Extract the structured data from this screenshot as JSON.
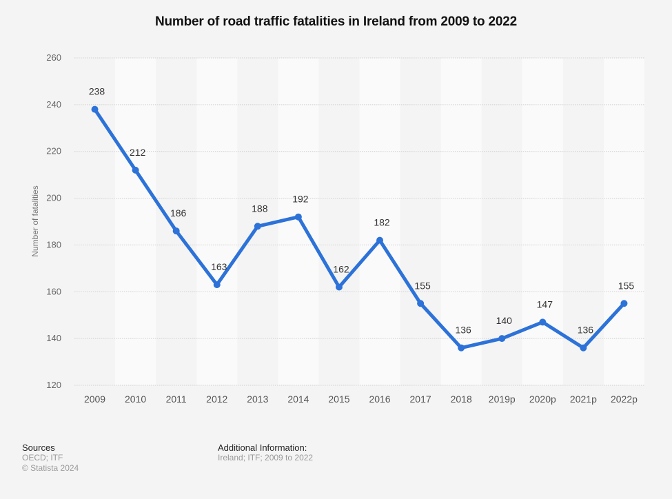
{
  "chart_data": {
    "type": "line",
    "title": "Number of road traffic fatalities in Ireland from 2009 to 2022",
    "xlabel": "",
    "ylabel": "Number of fatalities",
    "categories": [
      "2009",
      "2010",
      "2011",
      "2012",
      "2013",
      "2014",
      "2015",
      "2016",
      "2017",
      "2018",
      "2019p",
      "2020p",
      "2021p",
      "2022p"
    ],
    "series": [
      {
        "name": "Number of fatalities",
        "values": [
          238,
          212,
          186,
          163,
          188,
          192,
          162,
          182,
          155,
          136,
          140,
          147,
          136,
          155
        ],
        "color": "#2c72d8"
      }
    ],
    "ylim": [
      120,
      260
    ],
    "yticks": [
      120,
      140,
      160,
      180,
      200,
      220,
      240,
      260
    ],
    "grid": true,
    "legend": "none",
    "data_labels": true
  },
  "colors": {
    "line": "#2c72d8",
    "background": "#f4f4f4",
    "stripe": "#fafafa",
    "grid": "#cfcfcf"
  },
  "footer": {
    "sources_heading": "Sources",
    "sources_text": "OECD; ITF",
    "copyright": "© Statista 2024",
    "additional_heading": "Additional Information:",
    "additional_text": "Ireland; ITF; 2009 to 2022"
  }
}
